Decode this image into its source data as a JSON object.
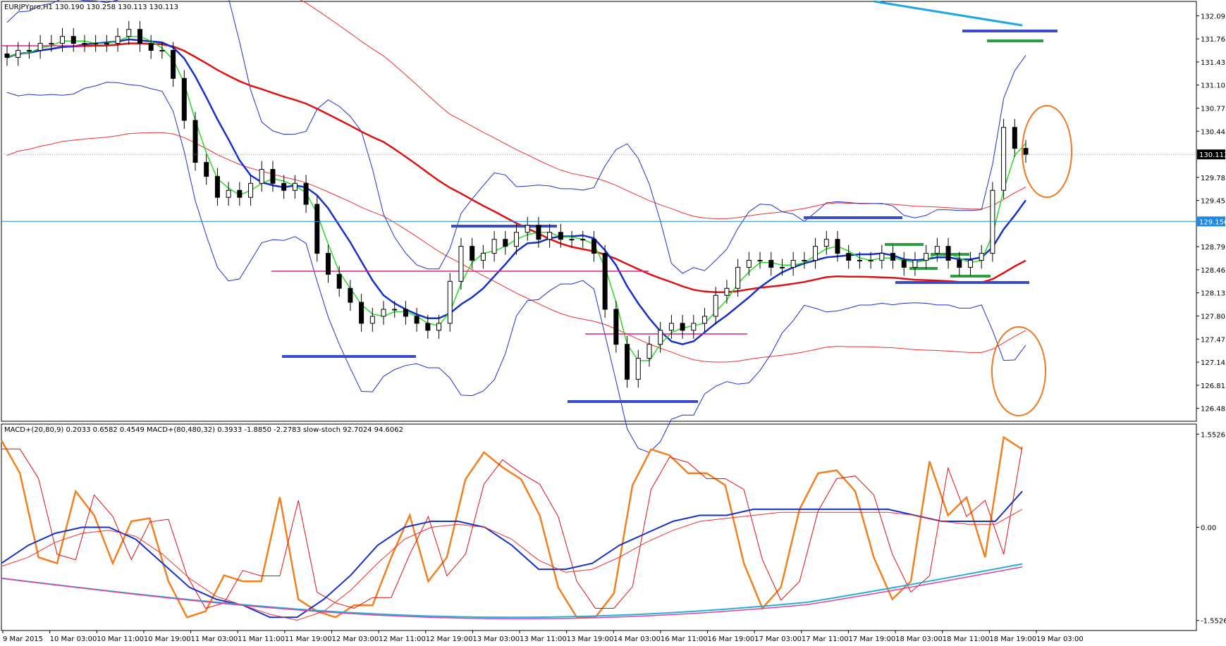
{
  "header": {
    "main_title": "EURJPYpro,H1  130.190 130.258 130.113 130.113",
    "sub_title": "MACD+(20,80,9) 0.2033 0.6582 0.4549  MACD+(80,480,32) 0.3933 -1.8850 -2.2783  slow-stoch 92.7024 94.6062"
  },
  "colors": {
    "candle": "#000000",
    "bb_band": "#1f2fd0",
    "ma_green": "#22dd22",
    "ma_blue": "#1530c8",
    "ma_red": "#e01010",
    "envelope_red": "#ee3030",
    "level_blue": "#3a4cc8",
    "level_green": "#2aa040",
    "level_magenta": "#e0208a",
    "hline": "#1e88e5",
    "circle": "#f07820",
    "trend_cyan": "#1aa6e8",
    "stoch_orange": "#f08020",
    "cyan_slow": "#20b0e0",
    "pink_slow": "#e040a0"
  },
  "price_axis": {
    "ticks": [
      "132.095",
      "131.765",
      "131.435",
      "131.105",
      "130.775",
      "130.445",
      "129.785",
      "129.455",
      "128.795",
      "128.465",
      "128.135",
      "127.805",
      "127.475",
      "127.145",
      "126.815",
      "126.485"
    ],
    "current_price": "130.113",
    "hline_price": "129.156"
  },
  "indicator_axis": {
    "ticks": [
      "1.5526",
      "0.00",
      "-1.5526"
    ]
  },
  "time_axis": {
    "labels": [
      "9 Mar 2015",
      "10 Mar 03:00",
      "10 Mar 11:00",
      "10 Mar 19:00",
      "11 Mar 03:00",
      "11 Mar 11:00",
      "11 Mar 19:00",
      "12 Mar 03:00",
      "12 Mar 11:00",
      "12 Mar 19:00",
      "13 Mar 03:00",
      "13 Mar 11:00",
      "13 Mar 19:00",
      "14 Mar 03:00",
      "16 Mar 11:00",
      "16 Mar 19:00",
      "17 Mar 03:00",
      "17 Mar 11:00",
      "17 Mar 19:00",
      "18 Mar 03:00",
      "18 Mar 11:00",
      "18 Mar 19:00",
      "19 Mar 03:00"
    ]
  },
  "chart_data": [
    {
      "type": "candlestick",
      "title": "EURJPYpro,H1",
      "ohlc_last": {
        "open": 130.19,
        "high": 130.258,
        "low": 130.113,
        "close": 130.113
      },
      "ylim": [
        126.485,
        132.3
      ],
      "levels": [
        129.156
      ],
      "series": [
        {
          "name": "close",
          "values": [
            131.5,
            131.6,
            131.6,
            131.7,
            131.7,
            131.8,
            131.7,
            131.7,
            131.7,
            131.7,
            131.8,
            131.9,
            131.7,
            131.6,
            131.6,
            131.2,
            130.6,
            130.0,
            129.8,
            129.5,
            129.6,
            129.5,
            129.7,
            129.9,
            129.7,
            129.6,
            129.7,
            129.4,
            128.7,
            128.4,
            128.2,
            128.0,
            127.7,
            127.8,
            127.9,
            127.9,
            127.8,
            127.7,
            127.6,
            127.7,
            128.3,
            128.8,
            128.6,
            128.7,
            128.9,
            128.8,
            129.0,
            129.1,
            128.9,
            129.0,
            128.9,
            128.9,
            128.9,
            128.7,
            127.9,
            127.4,
            126.9,
            127.2,
            127.4,
            127.6,
            127.7,
            127.6,
            127.7,
            127.8,
            128.1,
            128.2,
            128.5,
            128.6,
            128.6,
            128.5,
            128.5,
            128.6,
            128.6,
            128.8,
            128.9,
            128.7,
            128.6,
            128.6,
            128.6,
            128.7,
            128.6,
            128.5,
            128.6,
            128.7,
            128.8,
            128.6,
            128.5,
            128.6,
            128.7,
            129.6,
            130.5,
            130.2,
            130.113
          ]
        }
      ]
    },
    {
      "type": "line",
      "title": "MACD+ / slow-stoch",
      "ylim": [
        -1.5526,
        1.5526
      ],
      "series": [
        {
          "name": "slow-stoch",
          "values": [
            1.45,
            0.9,
            -0.5,
            -0.6,
            0.6,
            0.2,
            -0.6,
            0.1,
            0.15,
            -0.9,
            -1.5,
            -1.4,
            -0.8,
            -0.9,
            -0.9,
            0.5,
            -1.2,
            -1.4,
            -1.5,
            -1.3,
            -1.3,
            -0.5,
            0.2,
            -0.9,
            -0.5,
            0.8,
            1.25,
            1.0,
            0.8,
            0.2,
            -1.0,
            -1.5,
            -1.5,
            -1.1,
            0.7,
            1.3,
            1.2,
            0.9,
            0.9,
            0.7,
            -0.6,
            -1.35,
            -1.0,
            0.3,
            0.9,
            0.95,
            0.6,
            -0.5,
            -1.2,
            -0.9,
            1.1,
            0.2,
            0.5,
            -0.5,
            1.5,
            1.3
          ]
        },
        {
          "name": "MACD+(20,80,9)",
          "values": [
            -0.6,
            -0.3,
            -0.1,
            0.0,
            0.0,
            -0.2,
            -0.6,
            -1.0,
            -1.2,
            -1.3,
            -1.5,
            -1.5,
            -1.2,
            -0.8,
            -0.3,
            0.0,
            0.1,
            0.1,
            0.0,
            -0.3,
            -0.7,
            -0.7,
            -0.6,
            -0.3,
            -0.1,
            0.1,
            0.2,
            0.2,
            0.3,
            0.3,
            0.3,
            0.3,
            0.3,
            0.3,
            0.2,
            0.1,
            0.1,
            0.1,
            0.6
          ]
        }
      ]
    }
  ]
}
